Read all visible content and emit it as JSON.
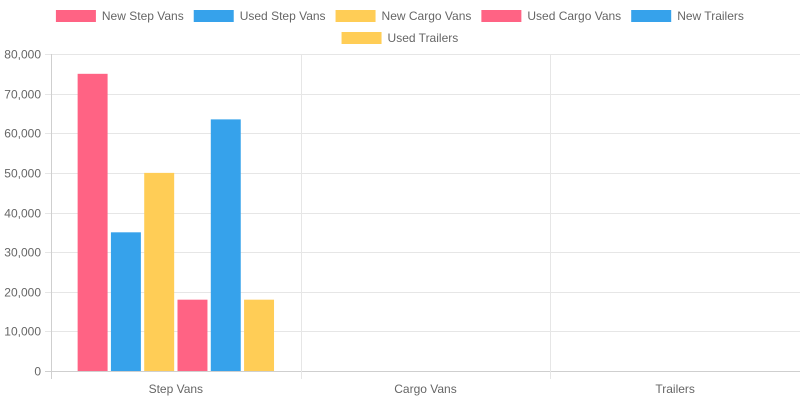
{
  "chart_data": {
    "type": "bar",
    "categories": [
      "Step Vans",
      "Cargo Vans",
      "Trailers"
    ],
    "series": [
      {
        "name": "New Step Vans",
        "color": "#ff6384",
        "values": [
          75000,
          null,
          null
        ]
      },
      {
        "name": "Used Step Vans",
        "color": "#36a2eb",
        "values": [
          35000,
          null,
          null
        ]
      },
      {
        "name": "New Cargo Vans",
        "color": "#ffcd56",
        "values": [
          50000,
          null,
          null
        ]
      },
      {
        "name": "Used Cargo Vans",
        "color": "#ff6384",
        "values": [
          18000,
          null,
          null
        ]
      },
      {
        "name": "New Trailers",
        "color": "#36a2eb",
        "values": [
          63500,
          null,
          null
        ]
      },
      {
        "name": "Used Trailers",
        "color": "#ffcd56",
        "values": [
          18000,
          null,
          null
        ]
      }
    ],
    "y_ticks": [
      "0",
      "10,000",
      "20,000",
      "30,000",
      "40,000",
      "50,000",
      "60,000",
      "70,000",
      "80,000"
    ],
    "ylim": [
      0,
      80000
    ],
    "grid": true,
    "legend_position": "top"
  }
}
